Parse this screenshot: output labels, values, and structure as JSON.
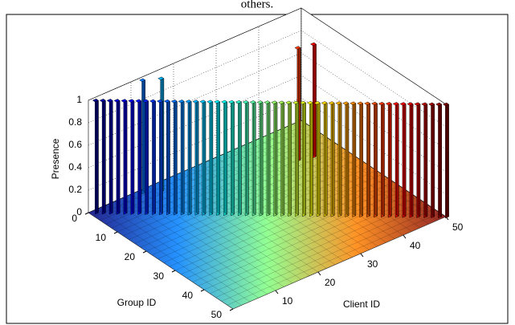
{
  "caption": "others.",
  "chart_data": {
    "type": "bar3",
    "colormap": "jet",
    "xlabel": "Client ID",
    "ylabel": "Group ID",
    "zlabel": "Presence",
    "x": [
      1,
      2,
      3,
      4,
      5,
      6,
      7,
      8,
      9,
      10,
      11,
      12,
      13,
      14,
      15,
      16,
      17,
      18,
      19,
      20,
      21,
      22,
      23,
      24,
      25,
      26,
      27,
      28,
      29,
      30,
      31,
      32,
      33,
      34,
      35,
      36,
      37,
      38,
      39,
      40,
      41,
      42,
      43,
      44,
      45,
      46,
      47,
      48,
      49,
      50,
      12,
      15,
      41,
      44
    ],
    "y": [
      1,
      2,
      3,
      4,
      5,
      6,
      7,
      8,
      9,
      10,
      11,
      12,
      13,
      14,
      15,
      16,
      17,
      18,
      19,
      20,
      21,
      22,
      23,
      24,
      25,
      26,
      27,
      28,
      29,
      30,
      31,
      32,
      33,
      34,
      35,
      36,
      37,
      38,
      39,
      40,
      41,
      42,
      43,
      44,
      45,
      46,
      47,
      48,
      49,
      50,
      1,
      3,
      12,
      13
    ],
    "values": [
      1,
      1,
      1,
      1,
      1,
      1,
      1,
      1,
      1,
      1,
      1,
      1,
      1,
      1,
      1,
      1,
      1,
      1,
      1,
      1,
      1,
      1,
      1,
      1,
      1,
      1,
      1,
      1,
      1,
      1,
      1,
      1,
      1,
      1,
      1,
      1,
      1,
      1,
      1,
      1,
      1,
      1,
      1,
      1,
      1,
      1,
      1,
      1,
      1,
      1,
      1,
      1,
      1,
      1
    ],
    "xlim": [
      0,
      50
    ],
    "ylim": [
      0,
      50
    ],
    "zlim": [
      0,
      1
    ],
    "xticks": [
      10,
      20,
      30,
      40,
      50
    ],
    "yticks": [
      0,
      10,
      20,
      30,
      40,
      50
    ],
    "zticks": [
      0,
      0.2,
      0.4,
      0.6,
      0.8,
      1
    ],
    "grid": true
  }
}
